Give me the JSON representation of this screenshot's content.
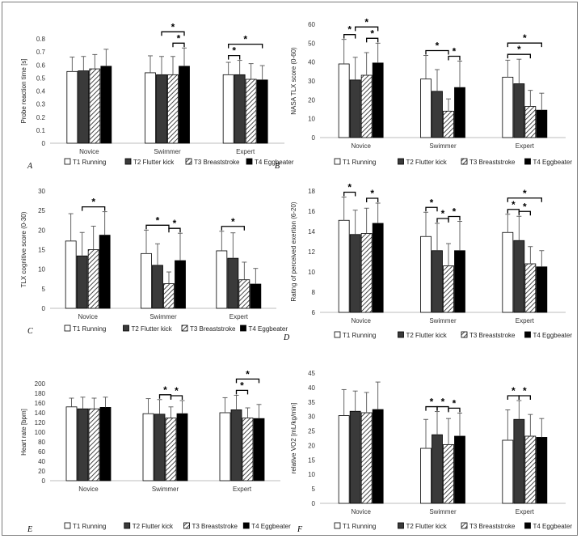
{
  "figure": {
    "panel_count": 6
  },
  "chart_data": [
    {
      "panel_letter": "A",
      "type": "bar",
      "ylabel": "Probe reaction time [s]",
      "ylim": [
        0,
        0.8
      ],
      "yticks": [
        "0",
        "0.1",
        "0.2",
        "0.3",
        "0.4",
        "0.5",
        "0.6",
        "0.7",
        "0.8"
      ],
      "yticks_values": [
        0,
        0.1,
        0.2,
        0.3,
        0.4,
        0.5,
        0.6,
        0.7,
        0.8
      ],
      "categories": [
        "Novice",
        "Swimmer",
        "Expert"
      ],
      "legend_position": "bottom",
      "series": [
        {
          "name": "T1 Running",
          "pattern": "white",
          "values": [
            0.55,
            0.54,
            0.525
          ],
          "errors": [
            0.11,
            0.13,
            0.095
          ]
        },
        {
          "name": "T2 Flutter kick",
          "pattern": "dark-gray",
          "values": [
            0.555,
            0.525,
            0.525
          ],
          "errors": [
            0.11,
            0.14,
            0.11
          ]
        },
        {
          "name": "T3 Breaststroke",
          "pattern": "hatched",
          "values": [
            0.57,
            0.525,
            0.49
          ],
          "errors": [
            0.11,
            0.14,
            0.12
          ]
        },
        {
          "name": "T4 Eggbeater",
          "pattern": "black",
          "values": [
            0.59,
            0.59,
            0.485
          ],
          "errors": [
            0.13,
            0.14,
            0.11
          ]
        }
      ],
      "significance": [
        {
          "group": 1,
          "from": 1,
          "to": 3,
          "level": 1
        },
        {
          "group": 1,
          "from": 2,
          "to": 3,
          "level": 0
        },
        {
          "group": 2,
          "from": 0,
          "to": 3,
          "level": 1
        },
        {
          "group": 2,
          "from": 0,
          "to": 1,
          "level": 0
        }
      ],
      "sig_label": "*"
    },
    {
      "panel_letter": "B",
      "type": "bar",
      "ylabel": "NASA TLX score (0-60)",
      "ylim": [
        0,
        60
      ],
      "yticks": [
        "0",
        "10",
        "20",
        "30",
        "40",
        "50",
        "60"
      ],
      "yticks_values": [
        0,
        10,
        20,
        30,
        40,
        50,
        60
      ],
      "categories": [
        "Novice",
        "Swimmer",
        "Expert"
      ],
      "legend_position": "bottom",
      "series": [
        {
          "name": "T1 Running",
          "pattern": "white",
          "values": [
            39,
            31,
            32
          ],
          "errors": [
            13,
            12.5,
            9
          ]
        },
        {
          "name": "T2 Flutter kick",
          "pattern": "dark-gray",
          "values": [
            30.5,
            24.5,
            28.5
          ],
          "errors": [
            12,
            11.5,
            13
          ]
        },
        {
          "name": "T3 Breaststroke",
          "pattern": "hatched",
          "values": [
            33,
            14,
            16.5
          ],
          "errors": [
            12,
            6.5,
            8.5
          ]
        },
        {
          "name": "T4 Eggbeater",
          "pattern": "black",
          "values": [
            39.5,
            26.5,
            14.5
          ],
          "errors": [
            10.5,
            14,
            9
          ]
        }
      ],
      "significance": [
        {
          "group": 0,
          "from": 0,
          "to": 1,
          "level": 0
        },
        {
          "group": 0,
          "from": 1,
          "to": 3,
          "level": 1
        },
        {
          "group": 0,
          "from": 2,
          "to": 3,
          "level": 0
        },
        {
          "group": 1,
          "from": 0,
          "to": 2,
          "level": 0
        },
        {
          "group": 1,
          "from": 2,
          "to": 3,
          "level": 0
        },
        {
          "group": 2,
          "from": 0,
          "to": 3,
          "level": 1
        },
        {
          "group": 2,
          "from": 0,
          "to": 2,
          "level": 0
        }
      ],
      "sig_label": "*"
    },
    {
      "panel_letter": "C",
      "type": "bar",
      "ylabel": "TLX cognitive score (0-30)",
      "ylim": [
        0,
        30
      ],
      "yticks": [
        "0",
        "5",
        "10",
        "15",
        "20",
        "25",
        "30"
      ],
      "yticks_values": [
        0,
        5,
        10,
        15,
        20,
        25,
        30
      ],
      "categories": [
        "Novice",
        "Swimmer",
        "Expert"
      ],
      "legend_position": "bottom",
      "series": [
        {
          "name": "T1 Running",
          "pattern": "white",
          "values": [
            17.2,
            14,
            14.7
          ],
          "errors": [
            7,
            6,
            5
          ]
        },
        {
          "name": "T2 Flutter kick",
          "pattern": "dark-gray",
          "values": [
            13.4,
            11,
            12.8
          ],
          "errors": [
            6,
            5.5,
            6.5
          ]
        },
        {
          "name": "T3 Breaststroke",
          "pattern": "hatched",
          "values": [
            15,
            6.3,
            7.3
          ],
          "errors": [
            6,
            3,
            4.5
          ]
        },
        {
          "name": "T4 Eggbeater",
          "pattern": "black",
          "values": [
            18.7,
            12.2,
            6.2
          ],
          "errors": [
            6,
            7,
            4
          ]
        }
      ],
      "significance": [
        {
          "group": 0,
          "from": 1,
          "to": 3,
          "level": 0
        },
        {
          "group": 1,
          "from": 0,
          "to": 2,
          "level": 0
        },
        {
          "group": 1,
          "from": 2,
          "to": 3,
          "level": 0
        },
        {
          "group": 2,
          "from": 0,
          "to": 2,
          "level": 0
        }
      ],
      "sig_label": "*"
    },
    {
      "panel_letter": "D",
      "type": "bar",
      "ylabel": "Rating of perceived exertion (6-20)",
      "ylim": [
        6,
        18
      ],
      "yticks": [
        "6",
        "8",
        "10",
        "12",
        "14",
        "16",
        "18"
      ],
      "yticks_values": [
        6,
        8,
        10,
        12,
        14,
        16,
        18
      ],
      "categories": [
        "Novice",
        "Swimmer",
        "Expert"
      ],
      "legend_position": "bottom",
      "series": [
        {
          "name": "T1 Running",
          "pattern": "white",
          "values": [
            15.1,
            13.5,
            13.9
          ],
          "errors": [
            2.3,
            2.4,
            1.8
          ]
        },
        {
          "name": "T2 Flutter kick",
          "pattern": "dark-gray",
          "values": [
            13.7,
            12.1,
            13.1
          ],
          "errors": [
            2.4,
            2.7,
            2.4
          ]
        },
        {
          "name": "T3 Breaststroke",
          "pattern": "hatched",
          "values": [
            13.8,
            10.6,
            10.8
          ],
          "errors": [
            2.5,
            2.2,
            1.7
          ]
        },
        {
          "name": "T4 Eggbeater",
          "pattern": "black",
          "values": [
            14.8,
            12.1,
            10.5
          ],
          "errors": [
            2.0,
            2.9,
            1.6
          ]
        }
      ],
      "significance": [
        {
          "group": 0,
          "from": 0,
          "to": 1,
          "level": 0
        },
        {
          "group": 0,
          "from": 2,
          "to": 3,
          "level": 0
        },
        {
          "group": 1,
          "from": 0,
          "to": 1,
          "level": 0
        },
        {
          "group": 1,
          "from": 1,
          "to": 2,
          "level": 0
        },
        {
          "group": 1,
          "from": 2,
          "to": 3,
          "level": 0
        },
        {
          "group": 2,
          "from": 0,
          "to": 1,
          "level": 0
        },
        {
          "group": 2,
          "from": 1,
          "to": 2,
          "level": 0
        },
        {
          "group": 2,
          "from": 0,
          "to": 3,
          "level": 1
        }
      ],
      "sig_label": "*"
    },
    {
      "panel_letter": "E",
      "type": "bar",
      "ylabel": "Heart rate [bpm]",
      "ylim": [
        0,
        200
      ],
      "yticks": [
        "0",
        "20",
        "40",
        "60",
        "80",
        "100",
        "120",
        "140",
        "160",
        "180",
        "200"
      ],
      "yticks_values": [
        0,
        20,
        40,
        60,
        80,
        100,
        120,
        140,
        160,
        180,
        200
      ],
      "categories": [
        "Novice",
        "Swimmer",
        "Expert"
      ],
      "legend_position": "bottom",
      "series": [
        {
          "name": "T1 Running",
          "pattern": "white",
          "values": [
            152,
            138,
            140
          ],
          "errors": [
            18,
            31,
            31
          ]
        },
        {
          "name": "T2 Flutter kick",
          "pattern": "dark-gray",
          "values": [
            148,
            137,
            146
          ],
          "errors": [
            24,
            30,
            30
          ]
        },
        {
          "name": "T3 Breaststroke",
          "pattern": "hatched",
          "values": [
            148,
            129,
            129
          ],
          "errors": [
            22,
            23,
            21
          ]
        },
        {
          "name": "T4 Eggbeater",
          "pattern": "black",
          "values": [
            151,
            138,
            128
          ],
          "errors": [
            21,
            27,
            29
          ]
        }
      ],
      "significance": [
        {
          "group": 1,
          "from": 1,
          "to": 2,
          "level": 0
        },
        {
          "group": 1,
          "from": 2,
          "to": 3,
          "level": 0
        },
        {
          "group": 2,
          "from": 1,
          "to": 2,
          "level": 0
        },
        {
          "group": 2,
          "from": 1,
          "to": 3,
          "level": 1
        }
      ],
      "sig_label": "*"
    },
    {
      "panel_letter": "F",
      "type": "bar",
      "ylabel": "relative VO2 [mL/kg/min]",
      "ylim": [
        0,
        45
      ],
      "yticks": [
        "0",
        "5",
        "10",
        "15",
        "20",
        "25",
        "30",
        "35",
        "40",
        "45"
      ],
      "yticks_values": [
        0,
        5,
        10,
        15,
        20,
        25,
        30,
        35,
        40,
        45
      ],
      "categories": [
        "Novice",
        "Swimmer",
        "Expert"
      ],
      "legend_position": "bottom",
      "series": [
        {
          "name": "T1 Running",
          "pattern": "white",
          "values": [
            30.3,
            19,
            21.8
          ],
          "errors": [
            9,
            10,
            10.5
          ]
        },
        {
          "name": "T2 Flutter kick",
          "pattern": "dark-gray",
          "values": [
            31.8,
            23.7,
            29
          ],
          "errors": [
            7,
            8,
            6.5
          ]
        },
        {
          "name": "T3 Breaststroke",
          "pattern": "hatched",
          "values": [
            31.3,
            20.3,
            23.2
          ],
          "errors": [
            7,
            9,
            7.5
          ]
        },
        {
          "name": "T4 Eggbeater",
          "pattern": "black",
          "values": [
            32.4,
            23.2,
            22.8
          ],
          "errors": [
            9.5,
            8,
            6.5
          ]
        }
      ],
      "significance": [
        {
          "group": 1,
          "from": 0,
          "to": 1,
          "level": 0
        },
        {
          "group": 1,
          "from": 1,
          "to": 2,
          "level": 0
        },
        {
          "group": 1,
          "from": 2,
          "to": 3,
          "level": 0
        },
        {
          "group": 2,
          "from": 0,
          "to": 1,
          "level": 0
        },
        {
          "group": 2,
          "from": 1,
          "to": 2,
          "level": 0
        }
      ],
      "sig_label": "*"
    }
  ]
}
